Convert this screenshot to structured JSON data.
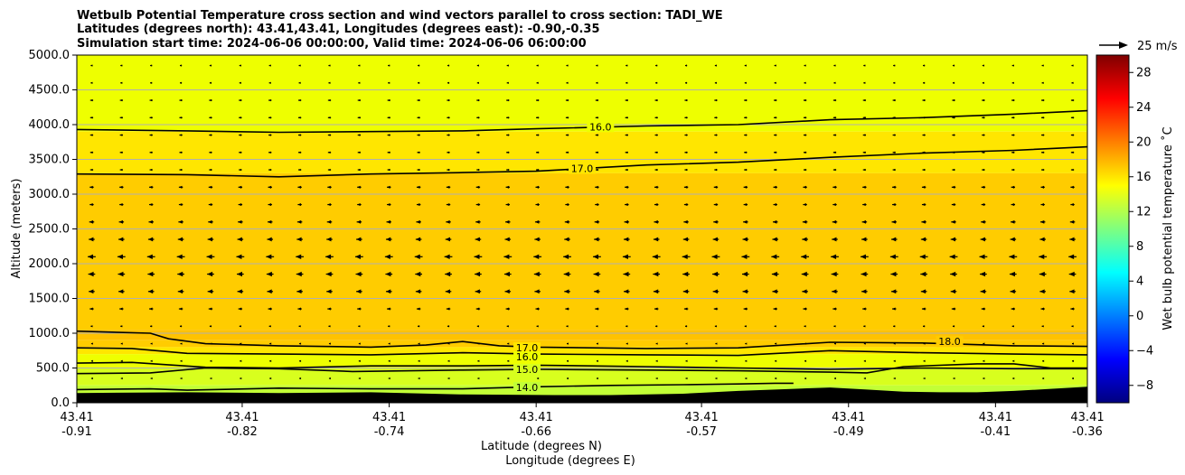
{
  "chart_data": {
    "type": "contour",
    "title_lines": [
      "Wetbulb Potential Temperature cross section and wind vectors parallel to cross section: TADI_WE",
      "Latitudes (degrees north): 43.41,43.41, Longitudes (degrees east): -0.90,-0.35",
      "Simulation start time: 2024-06-06 00:00:00, Valid time: 2024-06-06 06:00:00"
    ],
    "xlabel_lines": [
      "Latitude (degrees N)",
      "Longitude (degrees E)"
    ],
    "ylabel": "Altitude (meters)",
    "colorbar_label": "Wet bulb potential temperature ˚C",
    "quiver_key_label": "25 m/s",
    "xlim": [
      -0.91,
      -0.36
    ],
    "ylim": [
      0,
      5000
    ],
    "x_ticks": [
      {
        "lon": -0.91,
        "lat_label": "43.41",
        "lon_label": "-0.91"
      },
      {
        "lon": -0.82,
        "lat_label": "43.41",
        "lon_label": "-0.82"
      },
      {
        "lon": -0.74,
        "lat_label": "43.41",
        "lon_label": "-0.74"
      },
      {
        "lon": -0.66,
        "lat_label": "43.41",
        "lon_label": "-0.66"
      },
      {
        "lon": -0.57,
        "lat_label": "43.41",
        "lon_label": "-0.57"
      },
      {
        "lon": -0.49,
        "lat_label": "43.41",
        "lon_label": "-0.49"
      },
      {
        "lon": -0.41,
        "lat_label": "43.41",
        "lon_label": "-0.41"
      },
      {
        "lon": -0.36,
        "lat_label": "43.41",
        "lon_label": "-0.36"
      }
    ],
    "y_ticks": [
      {
        "value": 0,
        "label": "0.0"
      },
      {
        "value": 500,
        "label": "500.0"
      },
      {
        "value": 1000,
        "label": "1000.0"
      },
      {
        "value": 1500,
        "label": "1500.0"
      },
      {
        "value": 2000,
        "label": "2000.0"
      },
      {
        "value": 2500,
        "label": "2500.0"
      },
      {
        "value": 3000,
        "label": "3000.0"
      },
      {
        "value": 3500,
        "label": "3500.0"
      },
      {
        "value": 4000,
        "label": "4000.0"
      },
      {
        "value": 4500,
        "label": "4500.0"
      },
      {
        "value": 5000,
        "label": "5000.0"
      }
    ],
    "grid": true,
    "colorbar": {
      "vmin": -10,
      "vmax": 30,
      "colormap": "jet",
      "ticks": [
        {
          "value": -8,
          "label": "−8"
        },
        {
          "value": -4,
          "label": "−4"
        },
        {
          "value": 0,
          "label": "0"
        },
        {
          "value": 4,
          "label": "4"
        },
        {
          "value": 8,
          "label": "8"
        },
        {
          "value": 12,
          "label": "12"
        },
        {
          "value": 16,
          "label": "16"
        },
        {
          "value": 20,
          "label": "20"
        },
        {
          "value": 24,
          "label": "24"
        },
        {
          "value": 28,
          "label": "28"
        }
      ]
    },
    "fill_bands": [
      {
        "y_bottom": 3900,
        "y_top": 5000,
        "value": 15.5,
        "color": "#eeff00"
      },
      {
        "y_bottom": 3300,
        "y_top": 3900,
        "value": 16.5,
        "color": "#ffe600"
      },
      {
        "y_bottom": 1050,
        "y_top": 3300,
        "value": 17.5,
        "color": "#ffcc00"
      },
      {
        "y_bottom": 900,
        "y_top": 1050,
        "value": 18.2,
        "color": "#ffc200"
      },
      {
        "y_bottom": 800,
        "y_top": 900,
        "value": 17.5,
        "color": "#ffcc00"
      },
      {
        "y_bottom": 700,
        "y_top": 800,
        "value": 16.5,
        "color": "#ffe600"
      },
      {
        "y_bottom": 500,
        "y_top": 700,
        "value": 15.5,
        "color": "#eeff00"
      },
      {
        "y_bottom": 250,
        "y_top": 500,
        "value": 14.5,
        "color": "#d8ff1e"
      },
      {
        "y_bottom": 0,
        "y_top": 250,
        "value": 13.8,
        "color": "#c2ff36"
      }
    ],
    "contours": [
      {
        "level": "16.0",
        "label_at": {
          "lon": -0.625,
          "alt": 3970
        },
        "points": [
          [
            -0.91,
            3930
          ],
          [
            -0.85,
            3910
          ],
          [
            -0.8,
            3890
          ],
          [
            -0.75,
            3900
          ],
          [
            -0.7,
            3910
          ],
          [
            -0.66,
            3940
          ],
          [
            -0.6,
            3980
          ],
          [
            -0.55,
            4000
          ],
          [
            -0.5,
            4070
          ],
          [
            -0.45,
            4100
          ],
          [
            -0.4,
            4150
          ],
          [
            -0.36,
            4200
          ]
        ]
      },
      {
        "level": "17.0",
        "label_at": {
          "lon": -0.635,
          "alt": 3370
        },
        "points": [
          [
            -0.91,
            3290
          ],
          [
            -0.85,
            3280
          ],
          [
            -0.8,
            3250
          ],
          [
            -0.75,
            3290
          ],
          [
            -0.7,
            3310
          ],
          [
            -0.66,
            3330
          ],
          [
            -0.6,
            3420
          ],
          [
            -0.55,
            3460
          ],
          [
            -0.5,
            3530
          ],
          [
            -0.45,
            3590
          ],
          [
            -0.4,
            3630
          ],
          [
            -0.36,
            3680
          ]
        ]
      },
      {
        "level": "18.0",
        "label_at": {
          "lon": -0.435,
          "alt": 880
        },
        "points": [
          [
            -0.91,
            1030
          ],
          [
            -0.87,
            1000
          ],
          [
            -0.86,
            920
          ],
          [
            -0.84,
            850
          ],
          [
            -0.8,
            820
          ],
          [
            -0.75,
            800
          ],
          [
            -0.72,
            830
          ],
          [
            -0.7,
            880
          ],
          [
            -0.68,
            820
          ],
          [
            -0.66,
            800
          ],
          [
            -0.6,
            780
          ],
          [
            -0.55,
            790
          ],
          [
            -0.5,
            870
          ],
          [
            -0.45,
            860
          ],
          [
            -0.4,
            820
          ],
          [
            -0.36,
            810
          ]
        ]
      },
      {
        "level": "17.0",
        "label_at": {
          "lon": -0.665,
          "alt": 790
        },
        "points": [
          [
            -0.91,
            790
          ],
          [
            -0.88,
            780
          ],
          [
            -0.85,
            710
          ],
          [
            -0.8,
            700
          ],
          [
            -0.75,
            690
          ],
          [
            -0.7,
            720
          ],
          [
            -0.66,
            700
          ],
          [
            -0.6,
            690
          ],
          [
            -0.55,
            680
          ],
          [
            -0.5,
            750
          ],
          [
            -0.45,
            720
          ],
          [
            -0.4,
            700
          ],
          [
            -0.36,
            690
          ]
        ]
      },
      {
        "level": "16.0",
        "label_at": {
          "lon": -0.665,
          "alt": 660
        },
        "points": [
          [
            -0.91,
            570
          ],
          [
            -0.88,
            580
          ],
          [
            -0.84,
            510
          ],
          [
            -0.8,
            500
          ],
          [
            -0.75,
            530
          ],
          [
            -0.7,
            530
          ],
          [
            -0.66,
            540
          ],
          [
            -0.6,
            520
          ],
          [
            -0.55,
            500
          ],
          [
            -0.5,
            480
          ],
          [
            -0.45,
            500
          ],
          [
            -0.4,
            490
          ],
          [
            -0.36,
            490
          ]
        ]
      },
      {
        "level": "15.0",
        "label_at": {
          "lon": -0.665,
          "alt": 480
        },
        "points": [
          [
            -0.91,
            420
          ],
          [
            -0.87,
            430
          ],
          [
            -0.84,
            500
          ],
          [
            -0.8,
            490
          ],
          [
            -0.76,
            450
          ],
          [
            -0.7,
            470
          ],
          [
            -0.66,
            480
          ],
          [
            -0.6,
            470
          ],
          [
            -0.55,
            460
          ],
          [
            -0.5,
            440
          ],
          [
            -0.48,
            430
          ],
          [
            -0.46,
            520
          ],
          [
            -0.42,
            560
          ],
          [
            -0.4,
            560
          ],
          [
            -0.38,
            500
          ],
          [
            -0.36,
            500
          ]
        ]
      },
      {
        "level": "14.0",
        "label_at": {
          "lon": -0.665,
          "alt": 220
        },
        "points": [
          [
            -0.91,
            190
          ],
          [
            -0.87,
            200
          ],
          [
            -0.85,
            180
          ],
          [
            -0.8,
            210
          ],
          [
            -0.75,
            200
          ],
          [
            -0.7,
            200
          ],
          [
            -0.66,
            230
          ],
          [
            -0.62,
            250
          ],
          [
            -0.58,
            260
          ],
          [
            -0.55,
            270
          ],
          [
            -0.53,
            280
          ],
          [
            -0.52,
            280
          ]
        ]
      }
    ],
    "terrain": {
      "color": "#000000",
      "points": [
        [
          -0.91,
          140
        ],
        [
          -0.85,
          150
        ],
        [
          -0.8,
          140
        ],
        [
          -0.75,
          150
        ],
        [
          -0.7,
          120
        ],
        [
          -0.65,
          110
        ],
        [
          -0.62,
          110
        ],
        [
          -0.58,
          130
        ],
        [
          -0.55,
          170
        ],
        [
          -0.52,
          200
        ],
        [
          -0.5,
          220
        ],
        [
          -0.48,
          190
        ],
        [
          -0.46,
          160
        ],
        [
          -0.44,
          150
        ],
        [
          -0.42,
          150
        ],
        [
          -0.4,
          170
        ],
        [
          -0.38,
          200
        ],
        [
          -0.36,
          230
        ]
      ]
    },
    "wind_speed_profile": [
      {
        "alt": 4850,
        "u": -2
      },
      {
        "alt": 4600,
        "u": -2
      },
      {
        "alt": 4350,
        "u": -3
      },
      {
        "alt": 4100,
        "u": -3
      },
      {
        "alt": 3850,
        "u": -3
      },
      {
        "alt": 3600,
        "u": -3
      },
      {
        "alt": 3350,
        "u": -3
      },
      {
        "alt": 3100,
        "u": -4
      },
      {
        "alt": 2850,
        "u": -4
      },
      {
        "alt": 2600,
        "u": -5
      },
      {
        "alt": 2350,
        "u": -6
      },
      {
        "alt": 2100,
        "u": -8
      },
      {
        "alt": 1850,
        "u": -7
      },
      {
        "alt": 1600,
        "u": -6
      },
      {
        "alt": 1350,
        "u": -4
      },
      {
        "alt": 1100,
        "u": -2
      },
      {
        "alt": 850,
        "u": -1
      },
      {
        "alt": 600,
        "u": -1
      },
      {
        "alt": 350,
        "u": -1
      }
    ],
    "quiver_key_u": 25
  }
}
